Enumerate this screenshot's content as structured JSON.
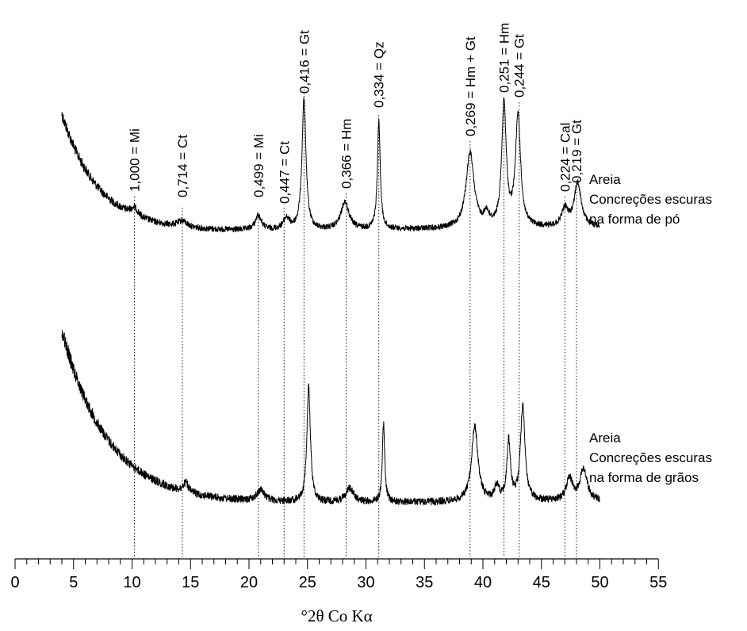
{
  "chart_data": {
    "type": "line",
    "title": "",
    "xlabel": "°2θ Co Kα",
    "ylabel": "",
    "xlim": [
      0,
      55
    ],
    "x_ticks": [
      0,
      5,
      10,
      15,
      20,
      25,
      30,
      35,
      40,
      45,
      50,
      55
    ],
    "y_axis_visible": false,
    "grid": false,
    "x_range_data": [
      4,
      50
    ],
    "peak_markers": [
      {
        "x": 10.2,
        "label": "1,000 = Mi"
      },
      {
        "x": 14.3,
        "label": "0,714 = Ct"
      },
      {
        "x": 20.8,
        "label": "0,499 = Mi"
      },
      {
        "x": 23.0,
        "label": "0,447 = Ct"
      },
      {
        "x": 24.7,
        "label": "0,416 = Gt"
      },
      {
        "x": 28.3,
        "label": "0,366 = Hm"
      },
      {
        "x": 31.1,
        "label": "0,334 = Qz"
      },
      {
        "x": 38.9,
        "label": "0,269 = Hm + Gt"
      },
      {
        "x": 41.8,
        "label": "0,251 = Hm"
      },
      {
        "x": 43.1,
        "label": "0,244 = Gt"
      },
      {
        "x": 47.0,
        "label": "0,224 = Cal"
      },
      {
        "x": 48.0,
        "label": "0,219 = Gt"
      }
    ],
    "series": [
      {
        "name": [
          "Areia",
          "Concreções escuras",
          "na forma de pó"
        ],
        "peaks": [
          {
            "x": 10.2,
            "h": 10,
            "w": 0.5
          },
          {
            "x": 14.3,
            "h": 8,
            "w": 0.6
          },
          {
            "x": 20.8,
            "h": 18,
            "w": 0.4
          },
          {
            "x": 23.2,
            "h": 14,
            "w": 0.4
          },
          {
            "x": 24.7,
            "h": 165,
            "w": 0.25
          },
          {
            "x": 28.2,
            "h": 35,
            "w": 0.5
          },
          {
            "x": 31.1,
            "h": 135,
            "w": 0.18
          },
          {
            "x": 38.9,
            "h": 95,
            "w": 0.5
          },
          {
            "x": 40.3,
            "h": 15,
            "w": 0.3
          },
          {
            "x": 41.8,
            "h": 155,
            "w": 0.28
          },
          {
            "x": 43.0,
            "h": 140,
            "w": 0.32
          },
          {
            "x": 47.0,
            "h": 22,
            "w": 0.4
          },
          {
            "x": 48.1,
            "h": 55,
            "w": 0.45
          }
        ]
      },
      {
        "name": [
          "Areia",
          "Concreções escuras",
          "na forma de grãos"
        ],
        "peaks": [
          {
            "x": 14.6,
            "h": 12,
            "w": 0.3
          },
          {
            "x": 21.0,
            "h": 14,
            "w": 0.5
          },
          {
            "x": 25.1,
            "h": 145,
            "w": 0.22
          },
          {
            "x": 28.6,
            "h": 18,
            "w": 0.5
          },
          {
            "x": 31.5,
            "h": 100,
            "w": 0.15
          },
          {
            "x": 39.3,
            "h": 95,
            "w": 0.4
          },
          {
            "x": 41.2,
            "h": 18,
            "w": 0.3
          },
          {
            "x": 42.2,
            "h": 75,
            "w": 0.22
          },
          {
            "x": 43.4,
            "h": 120,
            "w": 0.28
          },
          {
            "x": 47.4,
            "h": 28,
            "w": 0.4
          },
          {
            "x": 48.6,
            "h": 40,
            "w": 0.45
          }
        ]
      }
    ]
  }
}
